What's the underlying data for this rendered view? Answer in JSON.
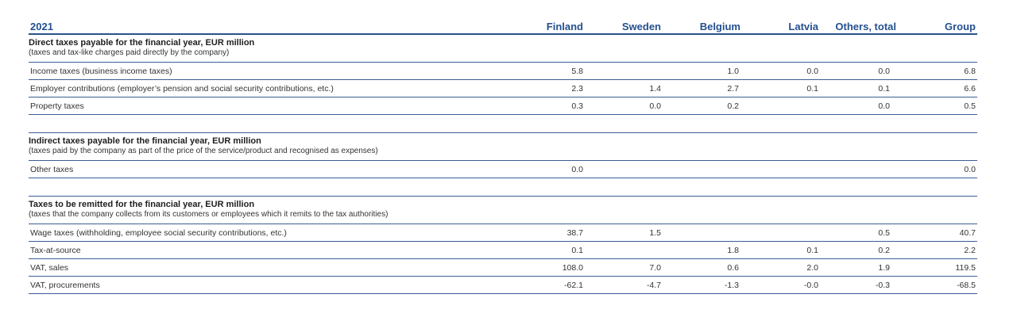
{
  "header": {
    "year": "2021",
    "columns": [
      "Finland",
      "Sweden",
      "Belgium",
      "Latvia",
      "Others, total",
      "Group"
    ]
  },
  "sections": [
    {
      "title": "Direct taxes payable for the financial year, EUR million",
      "subtitle": "(taxes and tax-like charges paid directly by the company)",
      "rows": [
        {
          "label": "Income taxes (business income taxes)",
          "values": [
            "5.8",
            "",
            "1.0",
            "0.0",
            "0.0",
            "6.8"
          ]
        },
        {
          "label": "Employer contributions (employer’s pension and social security contributions, etc.)",
          "values": [
            "2.3",
            "1.4",
            "2.7",
            "0.1",
            "0.1",
            "6.6"
          ]
        },
        {
          "label": "Property taxes",
          "values": [
            "0.3",
            "0.0",
            "0.2",
            "",
            "0.0",
            "0.5"
          ]
        }
      ]
    },
    {
      "title": "Indirect taxes payable for the financial year, EUR million",
      "subtitle": "(taxes paid by the company as part of the price of the service/product and recognised as expenses)",
      "rows": [
        {
          "label": "Other taxes",
          "values": [
            "0.0",
            "",
            "",
            "",
            "",
            "0.0"
          ]
        }
      ]
    },
    {
      "title": "Taxes to be remitted for the financial year, EUR million",
      "subtitle": "(taxes that the company collects from its customers or employees which it remits to the tax authorities)",
      "rows": [
        {
          "label": "Wage taxes (withholding, employee social security contributions, etc.)",
          "values": [
            "38.7",
            "1.5",
            "",
            "",
            "0.5",
            "40.7"
          ]
        },
        {
          "label": "Tax-at-source",
          "values": [
            "0.1",
            "",
            "1.8",
            "0.1",
            "0.2",
            "2.2"
          ]
        },
        {
          "label": "VAT, sales",
          "values": [
            "108.0",
            "7.0",
            "0.6",
            "2.0",
            "1.9",
            "119.5"
          ]
        },
        {
          "label": "VAT, procurements",
          "values": [
            "-62.1",
            "-4.7",
            "-1.3",
            "-0.0",
            "-0.3",
            "-68.5"
          ]
        }
      ]
    }
  ]
}
